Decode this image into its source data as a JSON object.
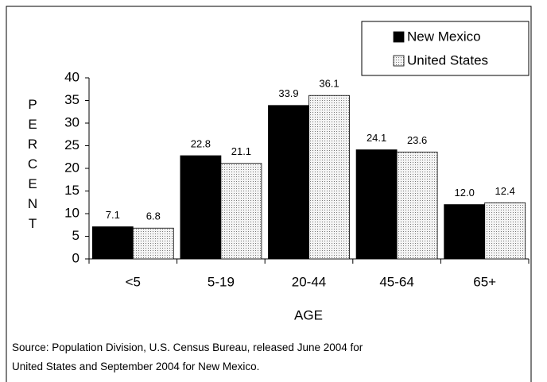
{
  "chart_data": {
    "type": "bar",
    "categories": [
      "<5",
      "5-19",
      "20-44",
      "45-64",
      "65+"
    ],
    "series": [
      {
        "name": "New Mexico",
        "color": "#000000",
        "values": [
          7.1,
          22.8,
          33.9,
          24.1,
          12.0
        ],
        "value_labels": [
          "7.1",
          "22.8",
          "33.9",
          "24.1",
          "12.0"
        ]
      },
      {
        "name": "United States",
        "color": "#dcdcdc",
        "values": [
          6.8,
          21.1,
          36.1,
          23.6,
          12.4
        ],
        "value_labels": [
          "6.8",
          "21.1",
          "36.1",
          "23.6",
          "12.4"
        ]
      }
    ],
    "ylim": [
      0,
      40
    ],
    "yticks": [
      0,
      5,
      10,
      15,
      20,
      25,
      30,
      35,
      40
    ],
    "y_label": "PERCENT",
    "x_label": "AGE",
    "grid": false,
    "legend": "upper right",
    "source": [
      "Source: Population Division, U.S. Census Bureau, released June 2004 for",
      "United States and September 2004 for New Mexico."
    ]
  }
}
